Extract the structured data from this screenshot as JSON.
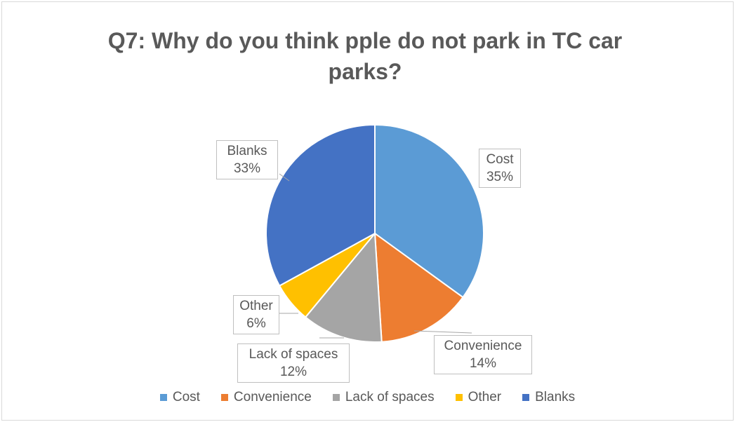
{
  "chart_data": {
    "type": "pie",
    "title": "Q7: Why do you think pple do not park in TC car parks?",
    "categories": [
      "Cost",
      "Convenience",
      "Lack of spaces",
      "Other",
      "Blanks"
    ],
    "values": [
      35,
      14,
      12,
      6,
      33
    ],
    "labels": [
      "35%",
      "14%",
      "12%",
      "6%",
      "33%"
    ],
    "colors": [
      "#5b9bd5",
      "#ed7d31",
      "#a5a5a5",
      "#ffc000",
      "#4472c4"
    ],
    "legend_position": "bottom"
  }
}
